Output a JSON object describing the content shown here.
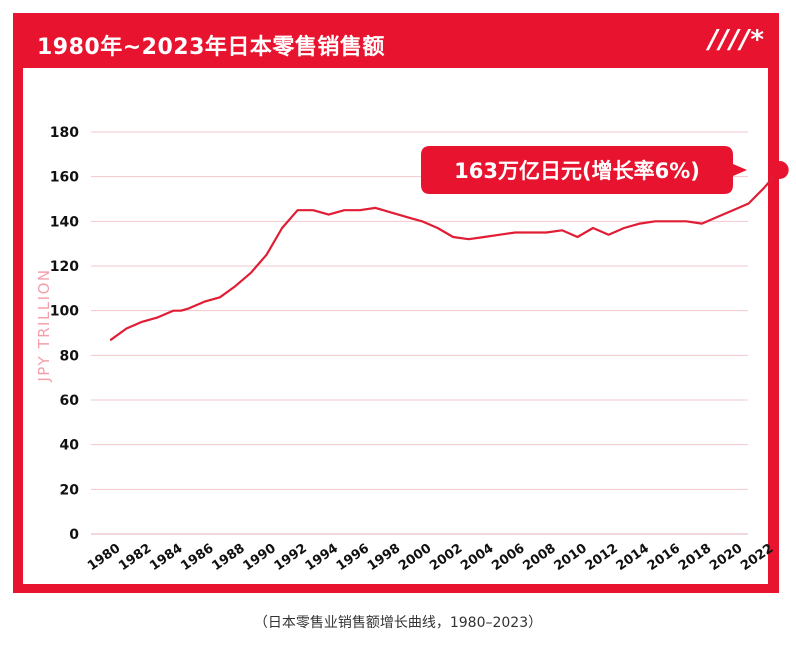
{
  "header": {
    "title": "1980年~2023年日本零售销售额",
    "decoration": "////*"
  },
  "caption": "（日本零售业销售额增长曲线，1980–2023）",
  "colors": {
    "accent": "#e8132e",
    "line": "#e11d35",
    "grid": "#f2c7cc",
    "axis_text": "#111111",
    "ylabel": "#f3a0ab"
  },
  "chart_data": {
    "type": "line",
    "title": "1980年~2023年日本零售销售额",
    "ylabel": "JPY TRILLION",
    "xlabel": "",
    "ylim": [
      0,
      180
    ],
    "yticks": [
      0,
      20,
      40,
      60,
      80,
      100,
      120,
      140,
      160,
      180
    ],
    "xticks": [
      "1980",
      "1982",
      "1984",
      "1986",
      "1988",
      "1990",
      "1992",
      "1994",
      "1996",
      "1998",
      "2000",
      "2002",
      "2004",
      "2006",
      "2008",
      "2010",
      "2012",
      "2014",
      "2016",
      "2018",
      "2020",
      "2022"
    ],
    "grid": true,
    "series": [
      {
        "x": [
          1980,
          1981,
          1982,
          1983,
          1984,
          1984.5,
          1985,
          1986,
          1987,
          1988,
          1989,
          1990,
          1991,
          1992,
          1993,
          1994,
          1995,
          1996,
          1997,
          1998,
          1999,
          2000,
          2001,
          2002,
          2003,
          2004,
          2005,
          2006,
          2007,
          2008,
          2009,
          2010,
          2011,
          2012,
          2013,
          2014,
          2015,
          2016,
          2017,
          2018,
          2019,
          2020,
          2021,
          2022,
          2023
        ],
        "values": [
          87,
          92,
          95,
          97,
          100,
          100,
          101,
          104,
          106,
          111,
          117,
          125,
          137,
          145,
          145,
          143,
          145,
          145,
          146,
          144,
          142,
          140,
          137,
          133,
          132,
          133,
          134,
          135,
          135,
          135,
          136,
          133,
          137,
          134,
          137,
          139,
          140,
          140,
          140,
          139,
          142,
          145,
          148,
          155,
          163
        ]
      }
    ],
    "annotation": {
      "label": "163万亿日元(增长率6%)",
      "x": 2023,
      "y": 163
    }
  }
}
